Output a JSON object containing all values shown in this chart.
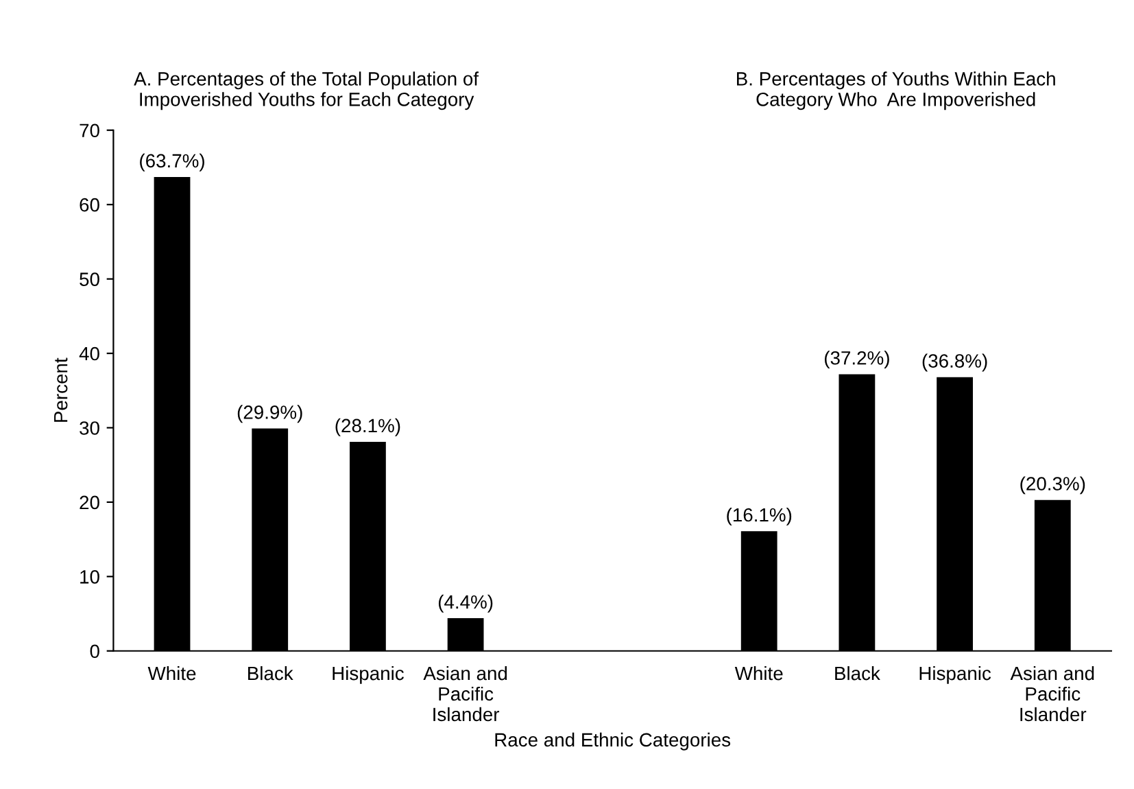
{
  "chart_data": {
    "type": "bar",
    "categories": [
      "White",
      "Black",
      "Hispanic",
      "Asian and\nPacific\nIslander",
      null,
      null,
      "White",
      "Black",
      "Hispanic",
      "Asian and\nPacific\nIslander"
    ],
    "values": [
      63.7,
      29.9,
      28.1,
      4.4,
      null,
      null,
      16.1,
      37.2,
      36.8,
      20.3
    ],
    "value_labels": [
      "(63.7%)",
      "(29.9%)",
      "(28.1%)",
      "(4.4%)",
      null,
      null,
      "(16.1%)",
      "(37.2%)",
      "(36.8%)",
      "(20.3%)"
    ],
    "color": "#000000",
    "ylabel": "Percent",
    "xlabel": "Race and Ethnic Categories",
    "ylim": [
      0,
      70
    ],
    "yticks": [
      0,
      10,
      20,
      30,
      40,
      50,
      60,
      70
    ],
    "annotations": [
      "A. Percentages of the Total Population of\nImpoverished Youths for Each Category",
      "B. Percentages of Youths Within Each\nCategory Who  Are Impoverished"
    ],
    "grid": false,
    "legend": false
  }
}
